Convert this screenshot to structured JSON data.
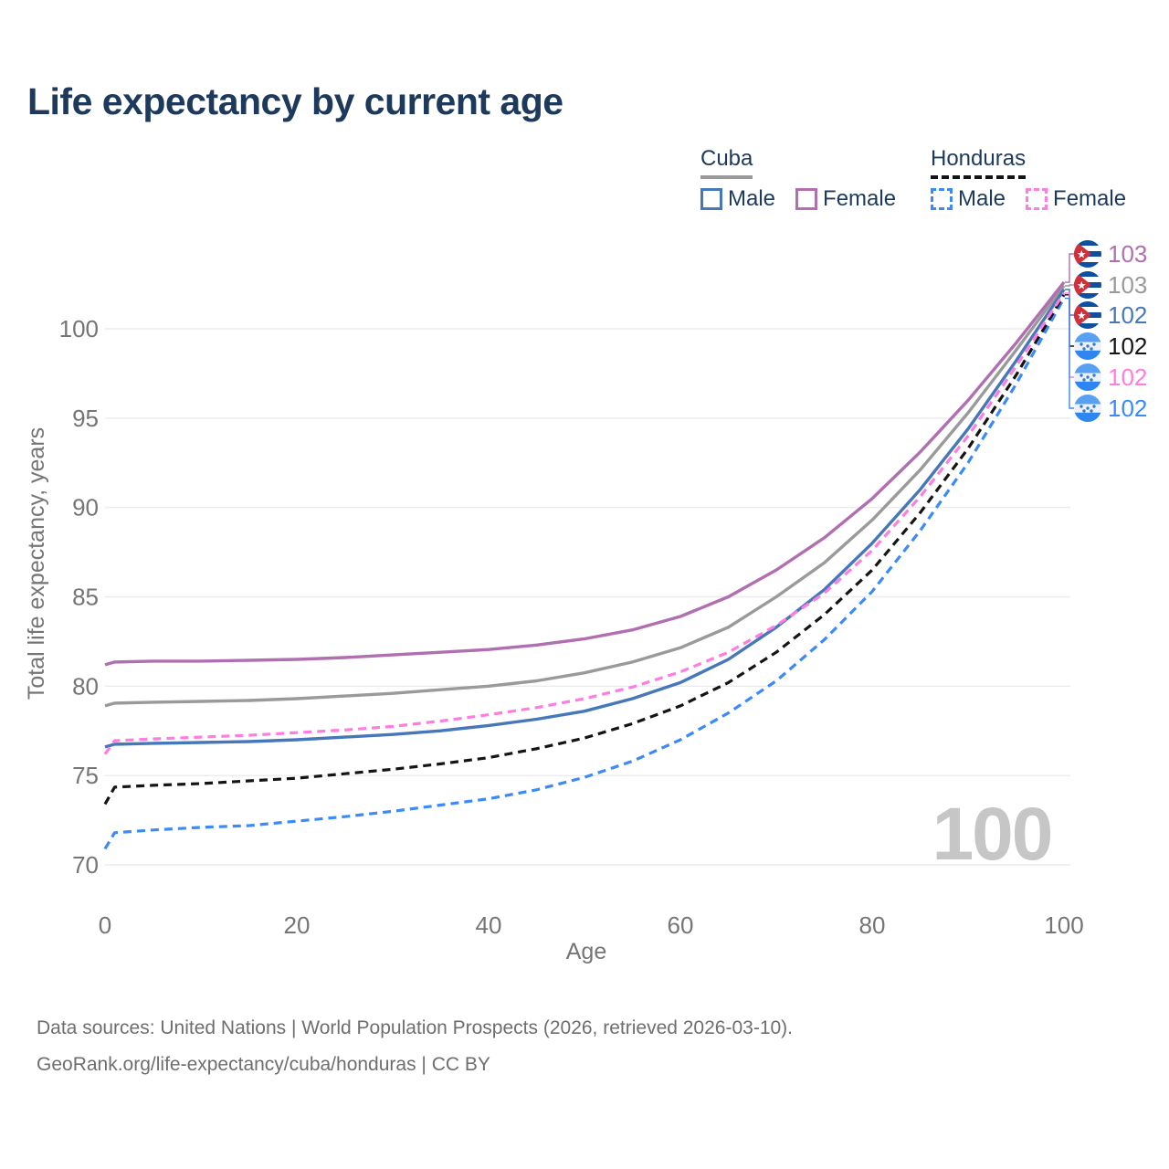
{
  "title": "Life expectancy by current age",
  "legend": {
    "groups": [
      {
        "country": "Cuba",
        "line_style": "solid",
        "underline_color": "#9a9a9a",
        "items": [
          {
            "label": "Male",
            "color": "#4678b9",
            "dashed": false
          },
          {
            "label": "Female",
            "color": "#b06fb0",
            "dashed": false
          }
        ]
      },
      {
        "country": "Honduras",
        "line_style": "dashed",
        "underline_color": "#141414",
        "items": [
          {
            "label": "Male",
            "color": "#3b8af7",
            "dashed": true
          },
          {
            "label": "Female",
            "color": "#ff7ce0",
            "dashed": true
          }
        ]
      }
    ]
  },
  "watermark": "100",
  "chart_data": {
    "type": "line",
    "title": "Life expectancy by current age",
    "xlabel": "Age",
    "ylabel": "Total life expectancy, years",
    "xlim": [
      0,
      100
    ],
    "ylim": [
      69,
      104
    ],
    "x_ticks": [
      0,
      20,
      40,
      60,
      80,
      100
    ],
    "y_ticks": [
      70,
      75,
      80,
      85,
      90,
      95,
      100
    ],
    "grid": "horizontal-only",
    "legend_position": "top-right",
    "x": [
      0,
      1,
      5,
      10,
      15,
      20,
      25,
      30,
      35,
      40,
      45,
      50,
      55,
      60,
      65,
      70,
      75,
      80,
      85,
      90,
      95,
      100
    ],
    "series": [
      {
        "key": "cuba_female",
        "country": "Cuba",
        "sex": "Female",
        "color": "#b06fb0",
        "dashed": false,
        "flag": "cuba",
        "end_label": "103",
        "values": [
          81.2,
          81.35,
          81.4,
          81.4,
          81.45,
          81.5,
          81.6,
          81.75,
          81.9,
          82.05,
          82.3,
          82.65,
          83.15,
          83.9,
          85.0,
          86.5,
          88.3,
          90.5,
          93.1,
          96.0,
          99.2,
          102.6
        ]
      },
      {
        "key": "cuba_total",
        "country": "Cuba",
        "sex": "Total",
        "color": "#9a9a9a",
        "dashed": false,
        "flag": "cuba",
        "end_label": "103",
        "values": [
          78.9,
          79.05,
          79.1,
          79.15,
          79.2,
          79.3,
          79.45,
          79.6,
          79.8,
          80.0,
          80.3,
          80.75,
          81.35,
          82.15,
          83.3,
          85.0,
          86.9,
          89.3,
          92.1,
          95.3,
          98.8,
          102.4
        ]
      },
      {
        "key": "cuba_male",
        "country": "Cuba",
        "sex": "Male",
        "color": "#4678b9",
        "dashed": false,
        "flag": "cuba",
        "end_label": "102",
        "values": [
          76.6,
          76.75,
          76.8,
          76.85,
          76.9,
          77.0,
          77.15,
          77.3,
          77.5,
          77.8,
          78.15,
          78.6,
          79.3,
          80.2,
          81.5,
          83.3,
          85.4,
          88.0,
          91.0,
          94.4,
          98.2,
          102.2
        ]
      },
      {
        "key": "honduras_total",
        "country": "Honduras",
        "sex": "Total",
        "color": "#141414",
        "dashed": true,
        "flag": "honduras",
        "end_label": "102",
        "values": [
          73.4,
          74.35,
          74.45,
          74.55,
          74.7,
          74.85,
          75.1,
          75.35,
          75.65,
          76.0,
          76.5,
          77.1,
          77.9,
          78.9,
          80.2,
          81.9,
          84.0,
          86.5,
          89.7,
          93.3,
          97.4,
          101.9
        ]
      },
      {
        "key": "honduras_female",
        "country": "Honduras",
        "sex": "Female",
        "color": "#ff7ce0",
        "dashed": true,
        "flag": "honduras",
        "end_label": "102",
        "values": [
          76.2,
          76.95,
          77.05,
          77.15,
          77.25,
          77.4,
          77.55,
          77.75,
          78.05,
          78.4,
          78.8,
          79.3,
          79.95,
          80.8,
          81.9,
          83.4,
          85.2,
          87.6,
          90.6,
          94.0,
          97.9,
          102.0
        ]
      },
      {
        "key": "honduras_male",
        "country": "Honduras",
        "sex": "Male",
        "color": "#3b8af7",
        "dashed": true,
        "flag": "honduras",
        "end_label": "102",
        "values": [
          70.9,
          71.8,
          71.95,
          72.1,
          72.2,
          72.45,
          72.7,
          73.0,
          73.35,
          73.7,
          74.2,
          74.9,
          75.8,
          77.0,
          78.5,
          80.3,
          82.6,
          85.3,
          88.7,
          92.5,
          96.9,
          101.7
        ]
      }
    ]
  },
  "footer": {
    "line1": "Data sources: United Nations | World Population Prospects (2026, retrieved 2026-03-10).",
    "line2": "GeoRank.org/life-expectancy/cuba/honduras | CC BY"
  }
}
